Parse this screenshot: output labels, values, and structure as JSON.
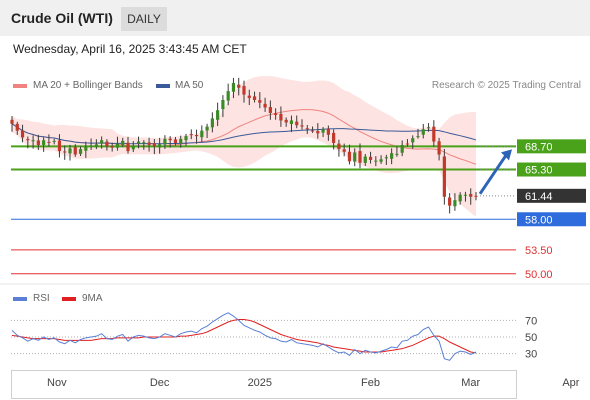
{
  "header": {
    "title": "Crude Oil (WTI)",
    "timeframe": "DAILY"
  },
  "datetime": "Wednesday, April 16, 2025 3:43:45 AM CET",
  "legend": {
    "bb_label": "MA 20 + Bollinger Bands",
    "ma50_label": "MA 50",
    "credit": "Research © 2025 Trading Central",
    "bb_color": "#f0837f",
    "ma50_color": "#3a5a9a"
  },
  "rsi_legend": {
    "rsi_label": "RSI",
    "ma_label": "9MA",
    "rsi_color": "#5b7fd6",
    "ma_color": "#e02020"
  },
  "chart_data": {
    "type": "candlestick",
    "x_ticks": [
      "Nov",
      "Dec",
      "2025",
      "Feb",
      "Mar",
      "Apr"
    ],
    "ylim": [
      48.5,
      75.5
    ],
    "last_price": 61.44,
    "closes": [
      72.0,
      71.0,
      70.0,
      69.6,
      69.6,
      68.9,
      69.6,
      69.2,
      69.5,
      68.0,
      67.8,
      68.4,
      67.5,
      68.3,
      68.6,
      68.8,
      69.0,
      69.6,
      68.7,
      68.5,
      69.1,
      69.5,
      68.0,
      68.8,
      69.4,
      69.3,
      68.9,
      68.7,
      69.0,
      69.8,
      69.6,
      69.2,
      69.8,
      70.2,
      70.4,
      70.2,
      71.0,
      71.6,
      72.8,
      74.0,
      75.5,
      76.8,
      78.0,
      77.3,
      76.3,
      75.8,
      75.5,
      75.1,
      74.4,
      73.6,
      73.3,
      72.5,
      72.2,
      72.5,
      71.8,
      71.6,
      71.3,
      71.0,
      70.6,
      71.2,
      70.4,
      69.2,
      68.3,
      67.9,
      66.5,
      67.8,
      66.3,
      67.2,
      66.7,
      66.6,
      66.8,
      67.1,
      67.7,
      67.6,
      68.9,
      69.0,
      69.9,
      70.2,
      71.2,
      71.5,
      69.4,
      67.5,
      61.3,
      60.0,
      60.8,
      61.6,
      61.6,
      61.3,
      61.4
    ],
    "levels": [
      {
        "value": 68.7,
        "label": "68.70",
        "kind": "resistance",
        "color": "#4aa21a"
      },
      {
        "value": 65.3,
        "label": "65.30",
        "kind": "resistance",
        "color": "#4aa21a"
      },
      {
        "value": 61.44,
        "label": "61.44",
        "kind": "last",
        "color": "#333333"
      },
      {
        "value": 58.0,
        "label": "58.00",
        "kind": "pivot",
        "color": "#2e6bdd"
      },
      {
        "value": 53.5,
        "label": "53.50",
        "kind": "support",
        "color": "#e03030"
      },
      {
        "value": 50.0,
        "label": "50.00",
        "kind": "support",
        "color": "#e03030"
      }
    ],
    "rsi": {
      "ticks": [
        70,
        50,
        30
      ],
      "ylim": [
        20,
        80
      ],
      "rsi_values": [
        58,
        52,
        49,
        45,
        48,
        46,
        50,
        47,
        49,
        44,
        42,
        46,
        43,
        47,
        49,
        50,
        51,
        54,
        48,
        47,
        51,
        53,
        45,
        50,
        52,
        51,
        49,
        48,
        50,
        54,
        52,
        50,
        54,
        56,
        57,
        55,
        60,
        63,
        68,
        72,
        76,
        79,
        75,
        70,
        64,
        61,
        58,
        56,
        52,
        49,
        48,
        45,
        44,
        47,
        43,
        42,
        41,
        40,
        38,
        42,
        38,
        34,
        31,
        32,
        28,
        35,
        30,
        34,
        32,
        31,
        33,
        35,
        38,
        37,
        45,
        46,
        51,
        53,
        59,
        62,
        52,
        45,
        24,
        22,
        30,
        33,
        32,
        29,
        32
      ],
      "ma_values": [
        52,
        51,
        50,
        49,
        48,
        48,
        48,
        48,
        48,
        47,
        46,
        46,
        46,
        46,
        46,
        46,
        47,
        48,
        48,
        48,
        49,
        49,
        49,
        49,
        49,
        50,
        50,
        50,
        50,
        50,
        50,
        50,
        51,
        51,
        52,
        53,
        54,
        56,
        59,
        62,
        65,
        68,
        70,
        71,
        71,
        70,
        68,
        65,
        62,
        59,
        56,
        53,
        51,
        49,
        47,
        46,
        45,
        44,
        43,
        41,
        40,
        38,
        37,
        36,
        35,
        34,
        33,
        32,
        32,
        32,
        32,
        33,
        34,
        35,
        36,
        38,
        40,
        43,
        46,
        49,
        51,
        51,
        48,
        44,
        41,
        38,
        35,
        32,
        31
      ]
    }
  }
}
